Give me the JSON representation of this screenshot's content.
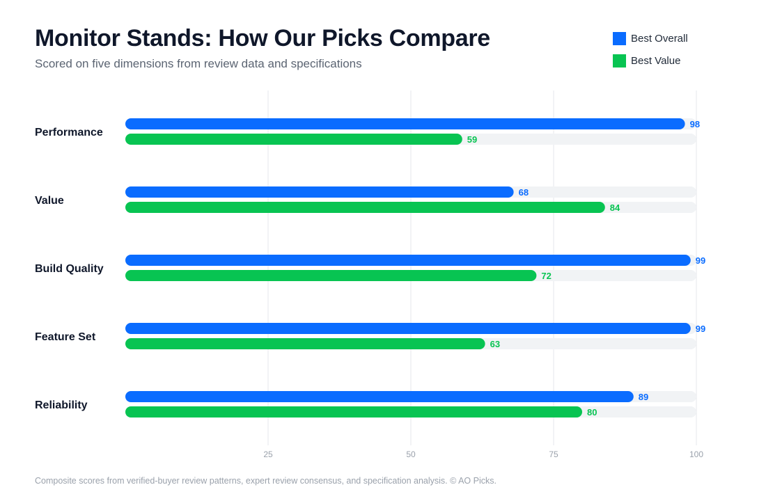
{
  "header": {
    "title": "Monitor Stands: How Our Picks Compare",
    "subtitle": "Scored on five dimensions from review data and specifications"
  },
  "legend": {
    "items": [
      {
        "label": "Best Overall",
        "color": "#0a6cff"
      },
      {
        "label": "Best Value",
        "color": "#08c452"
      }
    ]
  },
  "chart_data": {
    "type": "bar",
    "orientation": "horizontal",
    "categories": [
      "Performance",
      "Value",
      "Build Quality",
      "Feature Set",
      "Reliability"
    ],
    "series": [
      {
        "name": "Best Overall",
        "color": "#0a6cff",
        "values": [
          98,
          68,
          99,
          99,
          89
        ]
      },
      {
        "name": "Best Value",
        "color": "#08c452",
        "values": [
          59,
          84,
          72,
          63,
          80
        ]
      }
    ],
    "xlim": [
      0,
      100
    ],
    "xticks": [
      25,
      50,
      75,
      100
    ],
    "grid": true,
    "legend_position": "top-right",
    "track_color": "#f1f3f5",
    "grid_color": "#e5e7eb"
  },
  "footer": {
    "note": "Composite scores from verified-buyer review patterns, expert review consensus, and specification analysis. © AO Picks."
  }
}
